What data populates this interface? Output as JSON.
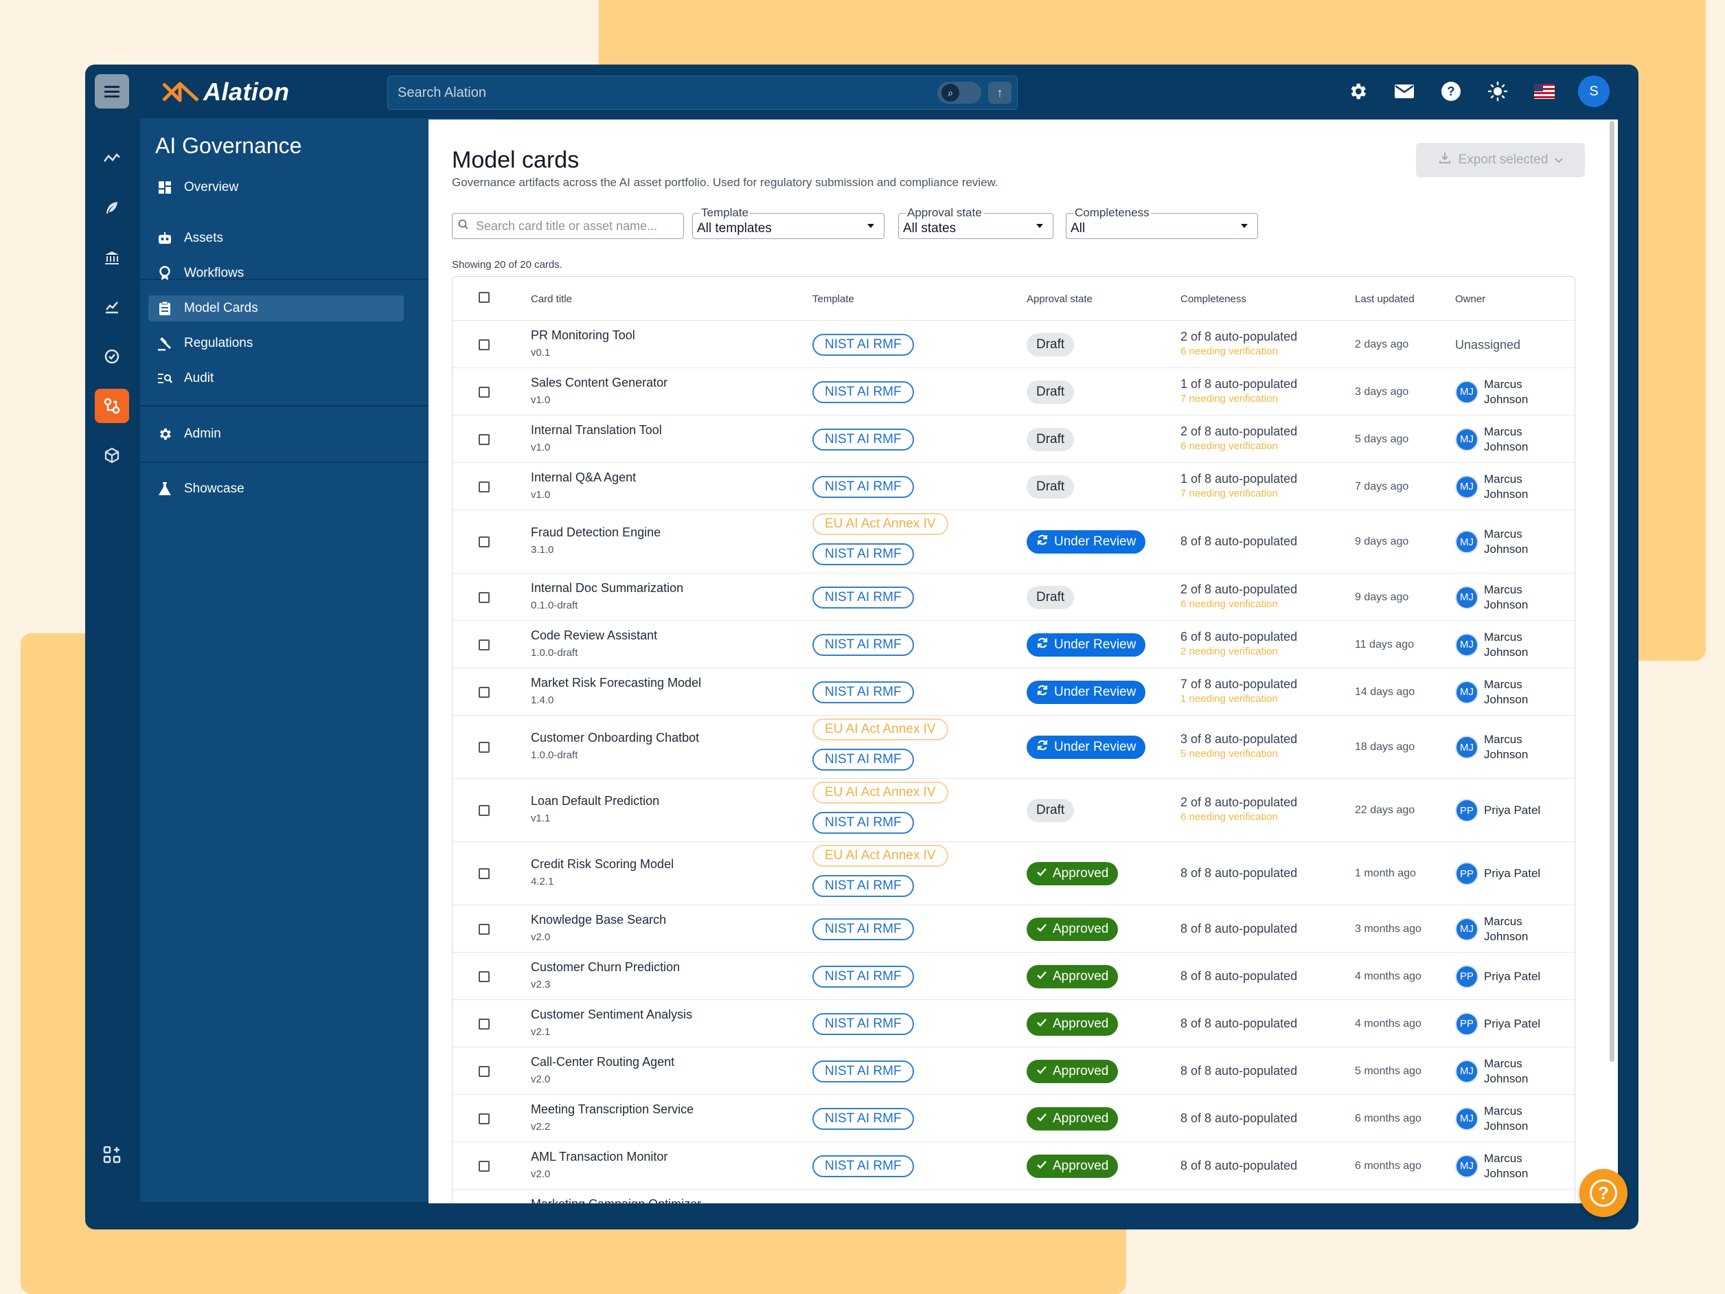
{
  "app": {
    "logo_text": "Alation",
    "search_placeholder": "Search Alation",
    "avatar_initial": "S"
  },
  "sidebar": {
    "title": "AI Governance",
    "items": [
      {
        "label": "Overview",
        "icon": "dashboard-icon"
      },
      {
        "label": "Assets",
        "icon": "robot-icon"
      },
      {
        "label": "Workflows",
        "icon": "award-icon"
      },
      {
        "label": "Model Cards",
        "icon": "clipboard-icon"
      },
      {
        "label": "Regulations",
        "icon": "gavel-icon"
      },
      {
        "label": "Audit",
        "icon": "list-search-icon"
      },
      {
        "label": "Admin",
        "icon": "gear-icon"
      },
      {
        "label": "Showcase",
        "icon": "flask-icon"
      }
    ]
  },
  "page": {
    "title": "Model cards",
    "subtitle": "Governance artifacts across the AI asset portfolio. Used for regulatory submission and compliance review.",
    "export_label": "Export selected",
    "search_placeholder": "Search card title or asset name...",
    "filters": {
      "template": {
        "label": "Template",
        "value": "All templates"
      },
      "approval": {
        "label": "Approval state",
        "value": "All states"
      },
      "completeness": {
        "label": "Completeness",
        "value": "All"
      }
    },
    "showing": "Showing 20 of 20 cards."
  },
  "table": {
    "headers": {
      "title": "Card title",
      "template": "Template",
      "approval": "Approval state",
      "completeness": "Completeness",
      "updated": "Last updated",
      "owner": "Owner"
    },
    "rows": [
      {
        "title": "PR Monitoring Tool",
        "version": "v0.1",
        "templates": [
          "NIST AI RMF"
        ],
        "state": "Draft",
        "completeness": "2 of 8 auto-populated",
        "verify": "6 needing verification",
        "updated": "2 days ago",
        "owner_initials": "",
        "owner": "Unassigned"
      },
      {
        "title": "Sales Content Generator",
        "version": "v1.0",
        "templates": [
          "NIST AI RMF"
        ],
        "state": "Draft",
        "completeness": "1 of 8 auto-populated",
        "verify": "7 needing verification",
        "updated": "3 days ago",
        "owner_initials": "MJ",
        "owner": "Marcus Johnson"
      },
      {
        "title": "Internal Translation Tool",
        "version": "v1.0",
        "templates": [
          "NIST AI RMF"
        ],
        "state": "Draft",
        "completeness": "2 of 8 auto-populated",
        "verify": "6 needing verification",
        "updated": "5 days ago",
        "owner_initials": "MJ",
        "owner": "Marcus Johnson"
      },
      {
        "title": "Internal Q&A Agent",
        "version": "v1.0",
        "templates": [
          "NIST AI RMF"
        ],
        "state": "Draft",
        "completeness": "1 of 8 auto-populated",
        "verify": "7 needing verification",
        "updated": "7 days ago",
        "owner_initials": "MJ",
        "owner": "Marcus Johnson"
      },
      {
        "title": "Fraud Detection Engine",
        "version": "3.1.0",
        "templates": [
          "EU AI Act Annex IV",
          "NIST AI RMF"
        ],
        "state": "Under Review",
        "completeness": "8 of 8 auto-populated",
        "verify": "",
        "updated": "9 days ago",
        "owner_initials": "MJ",
        "owner": "Marcus Johnson"
      },
      {
        "title": "Internal Doc Summarization",
        "version": "0.1.0-draft",
        "templates": [
          "NIST AI RMF"
        ],
        "state": "Draft",
        "completeness": "2 of 8 auto-populated",
        "verify": "6 needing verification",
        "updated": "9 days ago",
        "owner_initials": "MJ",
        "owner": "Marcus Johnson"
      },
      {
        "title": "Code Review Assistant",
        "version": "1.0.0-draft",
        "templates": [
          "NIST AI RMF"
        ],
        "state": "Under Review",
        "completeness": "6 of 8 auto-populated",
        "verify": "2 needing verification",
        "updated": "11 days ago",
        "owner_initials": "MJ",
        "owner": "Marcus Johnson"
      },
      {
        "title": "Market Risk Forecasting Model",
        "version": "1.4.0",
        "templates": [
          "NIST AI RMF"
        ],
        "state": "Under Review",
        "completeness": "7 of 8 auto-populated",
        "verify": "1 needing verification",
        "updated": "14 days ago",
        "owner_initials": "MJ",
        "owner": "Marcus Johnson"
      },
      {
        "title": "Customer Onboarding Chatbot",
        "version": "1.0.0-draft",
        "templates": [
          "EU AI Act Annex IV",
          "NIST AI RMF"
        ],
        "state": "Under Review",
        "completeness": "3 of 8 auto-populated",
        "verify": "5 needing verification",
        "updated": "18 days ago",
        "owner_initials": "MJ",
        "owner": "Marcus Johnson"
      },
      {
        "title": "Loan Default Prediction",
        "version": "v1.1",
        "templates": [
          "EU AI Act Annex IV",
          "NIST AI RMF"
        ],
        "state": "Draft",
        "completeness": "2 of 8 auto-populated",
        "verify": "6 needing verification",
        "updated": "22 days ago",
        "owner_initials": "PP",
        "owner": "Priya Patel"
      },
      {
        "title": "Credit Risk Scoring Model",
        "version": "4.2.1",
        "templates": [
          "EU AI Act Annex IV",
          "NIST AI RMF"
        ],
        "state": "Approved",
        "completeness": "8 of 8 auto-populated",
        "verify": "",
        "updated": "1 month ago",
        "owner_initials": "PP",
        "owner": "Priya Patel"
      },
      {
        "title": "Knowledge Base Search",
        "version": "v2.0",
        "templates": [
          "NIST AI RMF"
        ],
        "state": "Approved",
        "completeness": "8 of 8 auto-populated",
        "verify": "",
        "updated": "3 months ago",
        "owner_initials": "MJ",
        "owner": "Marcus Johnson"
      },
      {
        "title": "Customer Churn Prediction",
        "version": "v2.3",
        "templates": [
          "NIST AI RMF"
        ],
        "state": "Approved",
        "completeness": "8 of 8 auto-populated",
        "verify": "",
        "updated": "4 months ago",
        "owner_initials": "PP",
        "owner": "Priya Patel"
      },
      {
        "title": "Customer Sentiment Analysis",
        "version": "v2.1",
        "templates": [
          "NIST AI RMF"
        ],
        "state": "Approved",
        "completeness": "8 of 8 auto-populated",
        "verify": "",
        "updated": "4 months ago",
        "owner_initials": "PP",
        "owner": "Priya Patel"
      },
      {
        "title": "Call-Center Routing Agent",
        "version": "v2.0",
        "templates": [
          "NIST AI RMF"
        ],
        "state": "Approved",
        "completeness": "8 of 8 auto-populated",
        "verify": "",
        "updated": "5 months ago",
        "owner_initials": "MJ",
        "owner": "Marcus Johnson"
      },
      {
        "title": "Meeting Transcription Service",
        "version": "v2.2",
        "templates": [
          "NIST AI RMF"
        ],
        "state": "Approved",
        "completeness": "8 of 8 auto-populated",
        "verify": "",
        "updated": "6 months ago",
        "owner_initials": "MJ",
        "owner": "Marcus Johnson"
      },
      {
        "title": "AML Transaction Monitor",
        "version": "v2.0",
        "templates": [
          "NIST AI RMF"
        ],
        "state": "Approved",
        "completeness": "8 of 8 auto-populated",
        "verify": "",
        "updated": "6 months ago",
        "owner_initials": "MJ",
        "owner": "Marcus Johnson"
      },
      {
        "title": "Marketing Campaign Optimizer",
        "version": "",
        "templates": [],
        "state": "",
        "completeness": "",
        "verify": "",
        "updated": "",
        "owner_initials": "",
        "owner": ""
      }
    ]
  }
}
